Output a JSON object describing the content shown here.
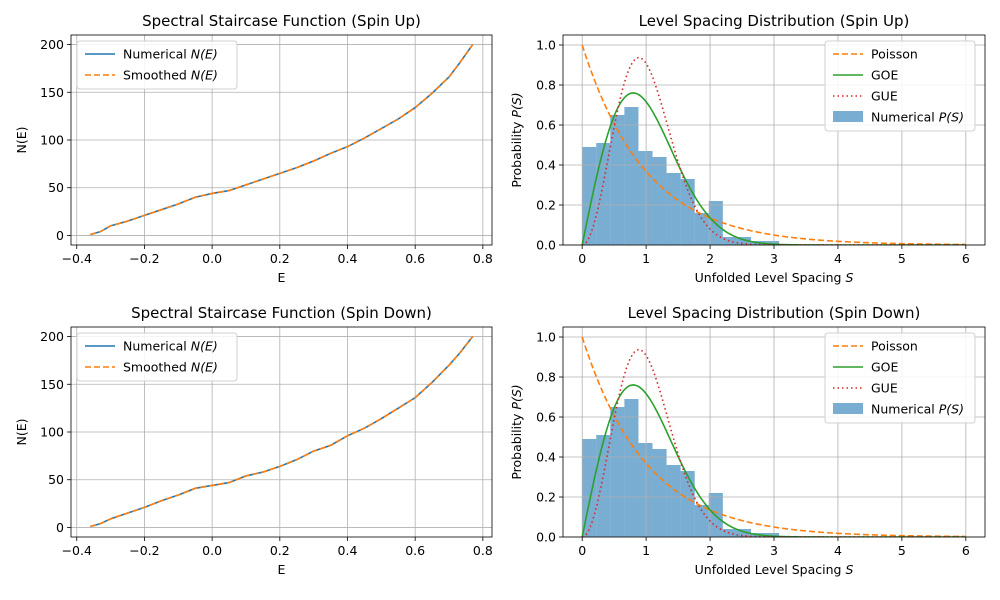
{
  "colors": {
    "blue": "#1f77b4",
    "orange": "#ff7f0e",
    "green": "#2ca02c",
    "red": "#d62728",
    "hist": "#1f77b4"
  },
  "chart_data": [
    {
      "type": "line",
      "title": "Spectral Staircase Function (Spin Up)",
      "xlabel": "E",
      "ylabel": "N(E)",
      "xlim": [
        -0.417,
        0.827
      ],
      "ylim": [
        -10,
        210
      ],
      "xticks": [
        -0.4,
        -0.2,
        0.0,
        0.2,
        0.4,
        0.6,
        0.8
      ],
      "xtick_labels": [
        "−0.4",
        "−0.2",
        "0.0",
        "0.2",
        "0.4",
        "0.6",
        "0.8"
      ],
      "yticks": [
        0,
        50,
        100,
        150,
        200
      ],
      "ytick_labels": [
        "0",
        "50",
        "100",
        "150",
        "200"
      ],
      "grid": true,
      "legend_position": "upper-left",
      "series": [
        {
          "name": "Numerical",
          "name_math": "N(E)",
          "style": "solid",
          "color": "#1f77b4",
          "x": [
            -0.36,
            -0.33,
            -0.3,
            -0.25,
            -0.2,
            -0.15,
            -0.1,
            -0.05,
            0.0,
            0.05,
            0.1,
            0.15,
            0.2,
            0.25,
            0.3,
            0.35,
            0.4,
            0.45,
            0.5,
            0.55,
            0.6,
            0.65,
            0.7,
            0.73,
            0.77
          ],
          "y": [
            1,
            4,
            10,
            15,
            21,
            27,
            33,
            40,
            44,
            47,
            53,
            59,
            65,
            71,
            78,
            86,
            93,
            102,
            112,
            122,
            134,
            149,
            166,
            180,
            200
          ]
        },
        {
          "name": "Smoothed",
          "name_math": "N(E)",
          "style": "dashed",
          "color": "#ff7f0e",
          "x": [
            -0.36,
            -0.33,
            -0.3,
            -0.25,
            -0.2,
            -0.15,
            -0.1,
            -0.05,
            0.0,
            0.05,
            0.1,
            0.15,
            0.2,
            0.25,
            0.3,
            0.35,
            0.4,
            0.45,
            0.5,
            0.55,
            0.6,
            0.65,
            0.7,
            0.73,
            0.77
          ],
          "y": [
            1,
            4,
            10,
            15,
            21,
            27,
            33,
            40,
            44,
            47,
            53,
            59,
            65,
            71,
            78,
            86,
            93,
            102,
            112,
            122,
            134,
            149,
            166,
            180,
            200
          ]
        }
      ]
    },
    {
      "type": "bar",
      "title": "Level Spacing Distribution (Spin Up)",
      "xlabel": "Unfolded Level Spacing",
      "xlabel_math": "S",
      "ylabel": "Probability",
      "ylabel_math": "P(S)",
      "xlim": [
        -0.3,
        6.3
      ],
      "ylim": [
        0,
        1.05
      ],
      "xticks": [
        0,
        1,
        2,
        3,
        4,
        5,
        6
      ],
      "xtick_labels": [
        "0",
        "1",
        "2",
        "3",
        "4",
        "5",
        "6"
      ],
      "yticks": [
        0.0,
        0.2,
        0.4,
        0.6,
        0.8,
        1.0
      ],
      "ytick_labels": [
        "0.0",
        "0.2",
        "0.4",
        "0.6",
        "0.8",
        "1.0"
      ],
      "grid": true,
      "legend_position": "upper-right",
      "series": [
        {
          "name": "Poisson",
          "style": "dashed",
          "color": "#ff7f0e",
          "formula": "exp(-s)"
        },
        {
          "name": "GOE",
          "style": "solid",
          "color": "#2ca02c",
          "formula": "(pi/2) s exp(-pi s^2 / 4)"
        },
        {
          "name": "GUE",
          "style": "dotted",
          "color": "#d62728",
          "formula": "(32/pi^2) s^2 exp(-4 s^2 / pi)"
        }
      ],
      "histogram": {
        "name": "Numerical",
        "name_math": "P(S)",
        "color": "#1f77b4",
        "bin_width": 0.22,
        "bin_starts": [
          0.0,
          0.22,
          0.44,
          0.66,
          0.88,
          1.1,
          1.32,
          1.54,
          1.76,
          1.98,
          2.2,
          2.42,
          2.64,
          2.86,
          3.08
        ],
        "values": [
          0.49,
          0.51,
          0.65,
          0.69,
          0.47,
          0.44,
          0.36,
          0.33,
          0.16,
          0.22,
          0.04,
          0.04,
          0.02,
          0.02,
          0.0
        ]
      }
    },
    {
      "type": "line",
      "title": "Spectral Staircase Function (Spin Down)",
      "xlabel": "E",
      "ylabel": "N(E)",
      "xlim": [
        -0.417,
        0.827
      ],
      "ylim": [
        -10,
        210
      ],
      "xticks": [
        -0.4,
        -0.2,
        0.0,
        0.2,
        0.4,
        0.6,
        0.8
      ],
      "xtick_labels": [
        "−0.4",
        "−0.2",
        "0.0",
        "0.2",
        "0.4",
        "0.6",
        "0.8"
      ],
      "yticks": [
        0,
        50,
        100,
        150,
        200
      ],
      "ytick_labels": [
        "0",
        "50",
        "100",
        "150",
        "200"
      ],
      "grid": true,
      "legend_position": "upper-left",
      "series": [
        {
          "name": "Numerical",
          "name_math": "N(E)",
          "style": "solid",
          "color": "#1f77b4",
          "x": [
            -0.36,
            -0.33,
            -0.3,
            -0.25,
            -0.2,
            -0.15,
            -0.1,
            -0.05,
            0.0,
            0.05,
            0.1,
            0.15,
            0.2,
            0.25,
            0.3,
            0.35,
            0.4,
            0.45,
            0.5,
            0.55,
            0.6,
            0.65,
            0.7,
            0.73,
            0.77
          ],
          "y": [
            1,
            4,
            9,
            15,
            21,
            28,
            34,
            41,
            44,
            47,
            54,
            58,
            64,
            71,
            80,
            86,
            96,
            104,
            114,
            125,
            136,
            152,
            170,
            182,
            200
          ]
        },
        {
          "name": "Smoothed",
          "name_math": "N(E)",
          "style": "dashed",
          "color": "#ff7f0e",
          "x": [
            -0.36,
            -0.33,
            -0.3,
            -0.25,
            -0.2,
            -0.15,
            -0.1,
            -0.05,
            0.0,
            0.05,
            0.1,
            0.15,
            0.2,
            0.25,
            0.3,
            0.35,
            0.4,
            0.45,
            0.5,
            0.55,
            0.6,
            0.65,
            0.7,
            0.73,
            0.77
          ],
          "y": [
            1,
            4,
            9,
            15,
            21,
            28,
            34,
            41,
            44,
            47,
            54,
            58,
            64,
            71,
            80,
            86,
            96,
            104,
            114,
            125,
            136,
            152,
            170,
            182,
            200
          ]
        }
      ]
    },
    {
      "type": "bar",
      "title": "Level Spacing Distribution (Spin Down)",
      "xlabel": "Unfolded Level Spacing",
      "xlabel_math": "S",
      "ylabel": "Probability",
      "ylabel_math": "P(S)",
      "xlim": [
        -0.3,
        6.3
      ],
      "ylim": [
        0,
        1.05
      ],
      "xticks": [
        0,
        1,
        2,
        3,
        4,
        5,
        6
      ],
      "xtick_labels": [
        "0",
        "1",
        "2",
        "3",
        "4",
        "5",
        "6"
      ],
      "yticks": [
        0.0,
        0.2,
        0.4,
        0.6,
        0.8,
        1.0
      ],
      "ytick_labels": [
        "0.0",
        "0.2",
        "0.4",
        "0.6",
        "0.8",
        "1.0"
      ],
      "grid": true,
      "legend_position": "upper-right",
      "series": [
        {
          "name": "Poisson",
          "style": "dashed",
          "color": "#ff7f0e",
          "formula": "exp(-s)"
        },
        {
          "name": "GOE",
          "style": "solid",
          "color": "#2ca02c",
          "formula": "(pi/2) s exp(-pi s^2 / 4)"
        },
        {
          "name": "GUE",
          "style": "dotted",
          "color": "#d62728",
          "formula": "(32/pi^2) s^2 exp(-4 s^2 / pi)"
        }
      ],
      "histogram": {
        "name": "Numerical",
        "name_math": "P(S)",
        "color": "#1f77b4",
        "bin_width": 0.22,
        "bin_starts": [
          0.0,
          0.22,
          0.44,
          0.66,
          0.88,
          1.1,
          1.32,
          1.54,
          1.76,
          1.98,
          2.2,
          2.42,
          2.64,
          2.86,
          3.08
        ],
        "values": [
          0.49,
          0.51,
          0.65,
          0.69,
          0.47,
          0.44,
          0.36,
          0.33,
          0.16,
          0.22,
          0.04,
          0.04,
          0.02,
          0.02,
          0.0
        ]
      }
    }
  ]
}
